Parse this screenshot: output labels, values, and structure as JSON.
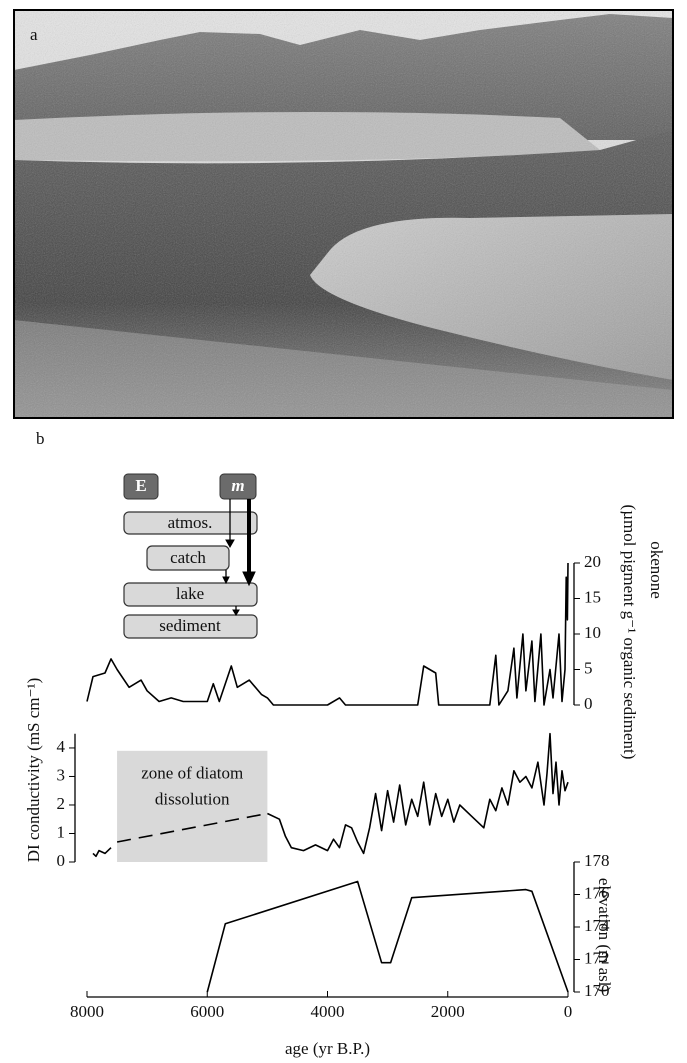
{
  "panel_labels": [
    "a",
    "b"
  ],
  "diagram": {
    "source_e": "E",
    "source_m": "m",
    "boxes": [
      "atmos.",
      "catch",
      "lake",
      "sediment"
    ]
  },
  "chart_data": [
    {
      "type": "line",
      "ylabel": [
        "okenone",
        "(µmol pigment g⁻¹ organic sediment)"
      ],
      "yaxis": "right",
      "xlim": [
        8000,
        0
      ],
      "ylim": [
        0,
        20
      ],
      "yticks": [
        0,
        5,
        10,
        15,
        20
      ],
      "series": [
        {
          "color": "#000000",
          "dashed": false,
          "x": [
            8000,
            7900,
            7700,
            7600,
            7500,
            7300,
            7100,
            7000,
            6800,
            6600,
            6400,
            6000,
            5900,
            5800,
            5600,
            5500,
            5300,
            5100,
            5000,
            4900,
            4500,
            4000,
            3800,
            3700,
            3000,
            2500,
            2400,
            2200,
            2150,
            1300,
            1200,
            1150,
            1000,
            900,
            850,
            750,
            700,
            600,
            550,
            450,
            400,
            300,
            250,
            150,
            100,
            50,
            30,
            10,
            0
          ],
          "values": [
            0.5,
            4,
            4.5,
            6.5,
            5,
            2.5,
            3.5,
            2,
            0.5,
            1,
            0.5,
            0.5,
            3,
            0.5,
            5.5,
            2.5,
            3.5,
            1.5,
            1,
            0,
            0,
            0,
            1,
            0,
            0,
            0,
            5.5,
            4.5,
            0,
            0,
            7,
            0,
            2,
            8,
            1,
            10,
            2,
            9,
            0.5,
            10,
            0,
            5,
            1,
            10,
            0.5,
            5,
            18,
            12,
            20
          ]
        }
      ]
    },
    {
      "type": "line",
      "ylabel": [
        "DI conductivity (mS cm⁻¹)"
      ],
      "yaxis": "left",
      "xlim": [
        8000,
        0
      ],
      "ylim": [
        0,
        4.5
      ],
      "yticks": [
        0,
        1,
        2,
        3,
        4
      ],
      "shade": {
        "x": [
          7500,
          5000
        ],
        "y": [
          0,
          3.9
        ],
        "label": [
          "zone of diatom",
          "dissolution"
        ]
      },
      "series": [
        {
          "color": "#000000",
          "dashed": false,
          "x": [
            7900,
            7850,
            7800,
            7700,
            7600
          ],
          "values": [
            0.3,
            0.2,
            0.4,
            0.3,
            0.5
          ]
        },
        {
          "color": "#000000",
          "dashed": true,
          "x": [
            7500,
            5000
          ],
          "values": [
            0.7,
            1.7
          ]
        },
        {
          "color": "#000000",
          "dashed": false,
          "x": [
            5000,
            4800,
            4700,
            4600,
            4400,
            4200,
            4000,
            3900,
            3800,
            3700,
            3600,
            3500,
            3400,
            3300,
            3200,
            3100,
            3000,
            2900,
            2800,
            2700,
            2600,
            2500,
            2400,
            2300,
            2200,
            2100,
            2000,
            1900,
            1800,
            1600,
            1400,
            1300,
            1200,
            1100,
            1000,
            900,
            800,
            700,
            600,
            500,
            400,
            350,
            300,
            250,
            200,
            150,
            100,
            50,
            0
          ],
          "values": [
            1.7,
            1.5,
            0.9,
            0.5,
            0.4,
            0.6,
            0.4,
            0.8,
            0.5,
            1.3,
            1.2,
            0.7,
            0.3,
            1.2,
            2.4,
            1.1,
            2.5,
            1.4,
            2.7,
            1.3,
            2.2,
            1.6,
            2.8,
            1.3,
            2.4,
            1.6,
            2.2,
            1.4,
            2.0,
            1.6,
            1.2,
            2.2,
            1.8,
            2.6,
            2.0,
            3.2,
            2.8,
            3.0,
            2.6,
            3.5,
            2.0,
            3.1,
            4.5,
            2.4,
            3.5,
            2.0,
            3.2,
            2.5,
            2.8
          ]
        }
      ]
    },
    {
      "type": "line",
      "ylabel": [
        "elevation (m asl)"
      ],
      "yaxis": "right",
      "xlim": [
        8000,
        0
      ],
      "ylim": [
        170,
        178
      ],
      "yticks": [
        170,
        172,
        174,
        176,
        178
      ],
      "xticks": [
        8000,
        6000,
        4000,
        2000,
        0
      ],
      "xlabel": "age (yr B.P.)",
      "series": [
        {
          "color": "#000000",
          "dashed": false,
          "x": [
            6000,
            5700,
            3500,
            3100,
            2950,
            2600,
            700,
            600,
            0
          ],
          "values": [
            170,
            174.2,
            176.8,
            171.8,
            171.8,
            175.8,
            176.3,
            176.2,
            170
          ]
        }
      ]
    }
  ]
}
